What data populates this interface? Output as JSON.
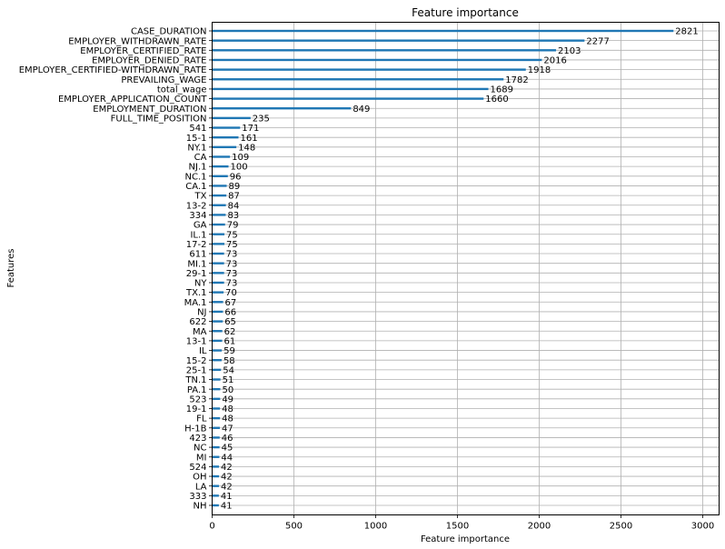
{
  "chart_data": {
    "type": "bar",
    "orientation": "horizontal",
    "title": "Feature importance",
    "xlabel": "Feature importance",
    "ylabel": "Features",
    "xlim": [
      0,
      3100
    ],
    "xticks": [
      0,
      500,
      1000,
      1500,
      2000,
      2500,
      3000
    ],
    "grid": true,
    "bar_color": "#1f77b4",
    "categories": [
      "CASE_DURATION",
      "EMPLOYER_WITHDRAWN_RATE",
      "EMPLOYER_CERTIFIED_RATE",
      "EMPLOYER_DENIED_RATE",
      "EMPLOYER_CERTIFIED-WITHDRAWN_RATE",
      "PREVAILING_WAGE",
      "total_wage",
      "EMPLOYER_APPLICATION_COUNT",
      "EMPLOYMENT_DURATION",
      "FULL_TIME_POSITION",
      "541",
      "15-1",
      "NY.1",
      "CA",
      "NJ.1",
      "NC.1",
      "CA.1",
      "TX",
      "13-2",
      "334",
      "GA",
      "IL.1",
      "17-2",
      "611",
      "MI.1",
      "29-1",
      "NY",
      "TX.1",
      "MA.1",
      "NJ",
      "622",
      "MA",
      "13-1",
      "IL",
      "15-2",
      "25-1",
      "TN.1",
      "PA.1",
      "523",
      "19-1",
      "FL",
      "H-1B",
      "423",
      "NC",
      "MI",
      "524",
      "OH",
      "LA",
      "333",
      "NH"
    ],
    "values": [
      2821,
      2277,
      2103,
      2016,
      1918,
      1782,
      1689,
      1660,
      849,
      235,
      171,
      161,
      148,
      109,
      100,
      96,
      89,
      87,
      84,
      83,
      79,
      75,
      75,
      73,
      73,
      73,
      73,
      70,
      67,
      66,
      65,
      62,
      61,
      59,
      58,
      54,
      51,
      50,
      49,
      48,
      48,
      47,
      46,
      45,
      44,
      42,
      42,
      42,
      41,
      41
    ]
  }
}
